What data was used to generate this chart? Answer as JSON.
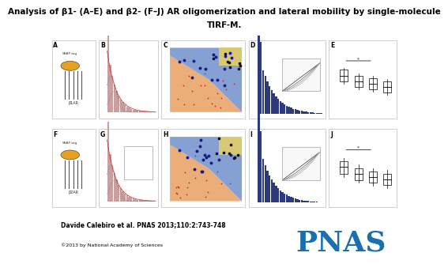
{
  "title_line1": "Analysis of β1- (A–E) and β2- (F–J) AR oligomerization and lateral mobility by single-molecule",
  "title_line2": "TIRF-M.",
  "title_fontsize": 7.5,
  "title_fontweight": "bold",
  "author_text": "Davide Calebiro et al. PNAS 2013;110:2:743-748",
  "copyright_text": "©2013 by National Academy of Sciences",
  "pnas_text": "PNAS",
  "pnas_color": "#1a6faf",
  "bg_color": "#ffffff",
  "panels_top": [
    "A",
    "B",
    "C",
    "D",
    "E"
  ],
  "panels_bot": [
    "F",
    "G",
    "H",
    "I",
    "J"
  ],
  "col_starts": [
    0.0,
    0.135,
    0.315,
    0.565,
    0.795
  ],
  "col_ends": [
    0.135,
    0.315,
    0.565,
    0.795,
    1.0
  ],
  "row_starts": [
    0.505,
    0.0
  ],
  "row_ends": [
    1.0,
    0.495
  ],
  "histogram_color": "#c8a0a0",
  "histogram_line_color": "#cc2222",
  "scatter_orange": "#e8a060",
  "scatter_blue": "#7090cc",
  "scatter_yellow": "#e8d060",
  "bar_color": "#2c3a7a",
  "box_edge_color": "#000000",
  "panel_edge_color": "#aaaaaa",
  "author_fontsize": 5.5,
  "copyright_fontsize": 4.5,
  "pnas_fontsize": 26,
  "label_fontsize": 5.5
}
